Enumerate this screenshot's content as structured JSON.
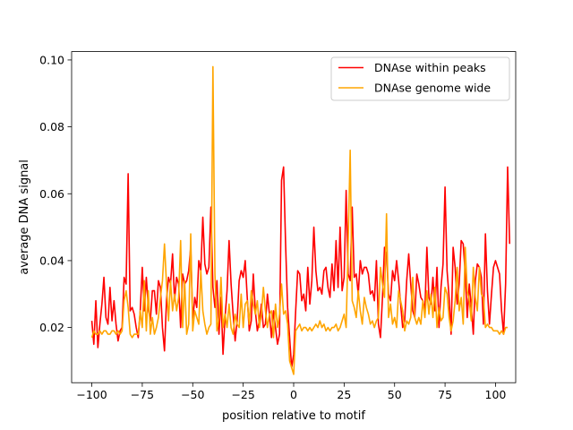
{
  "chart_data": {
    "type": "line",
    "title": "",
    "xlabel": "position relative to motif",
    "ylabel": "average DNA signal",
    "xlim": [
      -110,
      110
    ],
    "ylim": [
      0.0035,
      0.1025
    ],
    "xticks": [
      -100,
      -75,
      -50,
      -25,
      0,
      25,
      50,
      75,
      100
    ],
    "xtick_labels": [
      "−100",
      "−75",
      "−50",
      "−25",
      "0",
      "25",
      "50",
      "75",
      "100"
    ],
    "yticks": [
      0.02,
      0.04,
      0.06,
      0.08,
      0.1
    ],
    "ytick_labels": [
      "0.02",
      "0.04",
      "0.06",
      "0.08",
      "0.10"
    ],
    "grid": false,
    "legend_position": "top-right",
    "series": [
      {
        "name": "DNAse within peaks",
        "color": "#ff0000",
        "x_start": -100,
        "x_step": 1,
        "values": [
          0.022,
          0.015,
          0.028,
          0.014,
          0.021,
          0.027,
          0.035,
          0.023,
          0.021,
          0.032,
          0.022,
          0.028,
          0.021,
          0.016,
          0.019,
          0.02,
          0.035,
          0.033,
          0.066,
          0.025,
          0.026,
          0.024,
          0.02,
          0.017,
          0.025,
          0.038,
          0.025,
          0.035,
          0.026,
          0.022,
          0.031,
          0.031,
          0.024,
          0.034,
          0.032,
          0.02,
          0.013,
          0.028,
          0.035,
          0.033,
          0.042,
          0.028,
          0.035,
          0.033,
          0.02,
          0.036,
          0.033,
          0.034,
          0.037,
          0.044,
          0.022,
          0.029,
          0.026,
          0.04,
          0.037,
          0.053,
          0.039,
          0.036,
          0.038,
          0.056,
          0.032,
          0.026,
          0.034,
          0.018,
          0.029,
          0.012,
          0.023,
          0.031,
          0.046,
          0.033,
          0.024,
          0.016,
          0.022,
          0.034,
          0.037,
          0.035,
          0.04,
          0.029,
          0.019,
          0.022,
          0.036,
          0.025,
          0.019,
          0.022,
          0.027,
          0.02,
          0.021,
          0.03,
          0.024,
          0.017,
          0.025,
          0.02,
          0.015,
          0.018,
          0.064,
          0.068,
          0.045,
          0.026,
          0.017,
          0.008,
          0.012,
          0.025,
          0.037,
          0.036,
          0.028,
          0.03,
          0.025,
          0.038,
          0.027,
          0.034,
          0.05,
          0.037,
          0.031,
          0.032,
          0.03,
          0.037,
          0.038,
          0.032,
          0.029,
          0.039,
          0.031,
          0.046,
          0.032,
          0.05,
          0.031,
          0.035,
          0.061,
          0.036,
          0.034,
          0.056,
          0.035,
          0.036,
          0.03,
          0.04,
          0.036,
          0.038,
          0.038,
          0.036,
          0.03,
          0.031,
          0.028,
          0.04,
          0.021,
          0.017,
          0.029,
          0.044,
          0.042,
          0.03,
          0.028,
          0.037,
          0.034,
          0.04,
          0.034,
          0.027,
          0.02,
          0.022,
          0.034,
          0.042,
          0.033,
          0.025,
          0.023,
          0.036,
          0.033,
          0.029,
          0.028,
          0.025,
          0.044,
          0.029,
          0.027,
          0.035,
          0.025,
          0.038,
          0.02,
          0.032,
          0.039,
          0.062,
          0.037,
          0.029,
          0.018,
          0.044,
          0.038,
          0.027,
          0.033,
          0.046,
          0.045,
          0.036,
          0.023,
          0.033,
          0.026,
          0.018,
          0.034,
          0.039,
          0.038,
          0.035,
          0.021,
          0.048,
          0.031,
          0.021,
          0.03,
          0.038,
          0.04,
          0.038,
          0.036,
          0.025,
          0.018,
          0.033,
          0.068,
          0.045
        ]
      },
      {
        "name": "DNAse genome wide",
        "color": "#ffa500",
        "x_start": -100,
        "x_step": 1,
        "values": [
          0.017,
          0.019,
          0.018,
          0.018,
          0.019,
          0.018,
          0.019,
          0.019,
          0.018,
          0.018,
          0.019,
          0.019,
          0.018,
          0.019,
          0.018,
          0.019,
          0.028,
          0.031,
          0.026,
          0.018,
          0.017,
          0.018,
          0.018,
          0.018,
          0.025,
          0.02,
          0.034,
          0.019,
          0.031,
          0.018,
          0.023,
          0.018,
          0.02,
          0.023,
          0.029,
          0.034,
          0.045,
          0.033,
          0.022,
          0.034,
          0.025,
          0.03,
          0.025,
          0.029,
          0.046,
          0.02,
          0.034,
          0.018,
          0.021,
          0.048,
          0.019,
          0.025,
          0.023,
          0.021,
          0.037,
          0.025,
          0.021,
          0.018,
          0.02,
          0.021,
          0.098,
          0.036,
          0.019,
          0.023,
          0.035,
          0.02,
          0.024,
          0.02,
          0.027,
          0.02,
          0.018,
          0.024,
          0.021,
          0.02,
          0.03,
          0.02,
          0.027,
          0.028,
          0.021,
          0.031,
          0.027,
          0.024,
          0.028,
          0.02,
          0.024,
          0.032,
          0.025,
          0.02,
          0.024,
          0.025,
          0.017,
          0.027,
          0.02,
          0.024,
          0.033,
          0.024,
          0.025,
          0.021,
          0.01,
          0.008,
          0.006,
          0.019,
          0.02,
          0.021,
          0.019,
          0.02,
          0.02,
          0.019,
          0.02,
          0.019,
          0.02,
          0.021,
          0.02,
          0.022,
          0.02,
          0.021,
          0.019,
          0.02,
          0.019,
          0.02,
          0.02,
          0.021,
          0.019,
          0.02,
          0.022,
          0.024,
          0.02,
          0.045,
          0.073,
          0.028,
          0.026,
          0.023,
          0.031,
          0.025,
          0.021,
          0.029,
          0.026,
          0.024,
          0.021,
          0.022,
          0.02,
          0.022,
          0.023,
          0.038,
          0.033,
          0.029,
          0.054,
          0.023,
          0.027,
          0.021,
          0.023,
          0.02,
          0.031,
          0.028,
          0.025,
          0.019,
          0.022,
          0.021,
          0.023,
          0.035,
          0.023,
          0.021,
          0.023,
          0.021,
          0.028,
          0.023,
          0.031,
          0.024,
          0.03,
          0.023,
          0.032,
          0.02,
          0.026,
          0.022,
          0.023,
          0.032,
          0.03,
          0.023,
          0.019,
          0.022,
          0.028,
          0.038,
          0.025,
          0.029,
          0.021,
          0.044,
          0.031,
          0.028,
          0.022,
          0.038,
          0.029,
          0.025,
          0.038,
          0.03,
          0.029,
          0.02,
          0.021,
          0.02,
          0.02,
          0.019,
          0.019,
          0.019,
          0.018,
          0.019,
          0.018,
          0.02,
          0.02
        ]
      }
    ]
  }
}
